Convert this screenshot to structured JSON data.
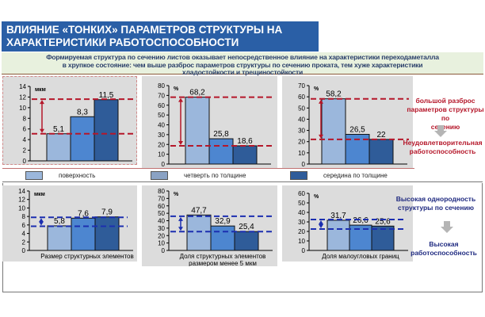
{
  "header": {
    "title_line1": "ВЛИЯНИЕ «ТОНКИХ» ПАРАМЕТРОВ СТРУКТУРЫ НА",
    "title_line2": "ХАРАКТЕРИСТИКИ РАБОТОСПОСОБНОСТИ",
    "subtitle_line1": "Формируемая структура по сечению листов оказывает непосредственное влияние на характеристики переходаметалла",
    "subtitle_line2": "в хрупкое состояние: чем выше разброс параметров структуры по сечению проката, тем хуже характеристики",
    "subtitle_line3": "хладостойкости и трещиностойкости"
  },
  "legend": [
    {
      "label": "поверхность",
      "color": "#9bb7dc"
    },
    {
      "label": "четверть по толщине",
      "color": "#8aa2c4"
    },
    {
      "label": "середина по толщине",
      "color": "#2f5c9a"
    }
  ],
  "colors": {
    "bar1": "#9bb7dc",
    "bar2": "#4d86d0",
    "bar3": "#2f5c99",
    "red": "#b5172a",
    "blue": "#1c2fb0",
    "dark_blue_text": "#1f2a80"
  },
  "notes": {
    "top_line1": "большой разброс",
    "top_line2": "параметров структуры по",
    "top_line3": "сечению",
    "top_result_line1": "Неудовлетворительная",
    "top_result_line2": "работоспособность",
    "bottom_line1": "Высокая однородность",
    "bottom_line2": "структуры по сечению",
    "bottom_result_line1": "Высокая",
    "bottom_result_line2": "работоспособность"
  },
  "chart_data": [
    {
      "type": "bar",
      "unit": "мкм",
      "ylim": [
        0,
        14
      ],
      "ticks": [
        "0",
        "2",
        "4",
        "6",
        "8",
        "10",
        "12",
        "14"
      ],
      "values": [
        5.1,
        8.3,
        11.5
      ],
      "labels": [
        "5,1",
        "8,3",
        "11,5"
      ],
      "categories": [
        "поверхность",
        "четверть по толщине",
        "середина по толщине"
      ],
      "xlabel": "",
      "range_lines": [
        5.1,
        11.6
      ],
      "line_color": "red"
    },
    {
      "type": "bar",
      "unit": "%",
      "ylim": [
        0,
        80
      ],
      "ticks": [
        "0",
        "10",
        "20",
        "30",
        "40",
        "50",
        "60",
        "70",
        "80"
      ],
      "values": [
        68.2,
        25.8,
        18.6
      ],
      "labels": [
        "68,2",
        "25,8",
        "18,6"
      ],
      "categories": [
        "поверхность",
        "четверть по толщине",
        "середина по толщине"
      ],
      "xlabel": "",
      "range_lines": [
        18.6,
        68.2
      ],
      "line_color": "red"
    },
    {
      "type": "bar",
      "unit": "%",
      "ylim": [
        0,
        70
      ],
      "ticks": [
        "0",
        "10",
        "20",
        "30",
        "40",
        "50",
        "60",
        "70"
      ],
      "values": [
        58.2,
        26.5,
        22
      ],
      "labels": [
        "58,2",
        "26,5",
        "22"
      ],
      "categories": [
        "поверхность",
        "четверть по толщине",
        "середина по толщине"
      ],
      "xlabel": "",
      "range_lines": [
        22,
        58.2
      ],
      "line_color": "red"
    },
    {
      "type": "bar",
      "unit": "мкм",
      "ylim": [
        0,
        14
      ],
      "ticks": [
        "0",
        "2",
        "4",
        "6",
        "8",
        "10",
        "12",
        "14"
      ],
      "values": [
        5.8,
        7.6,
        7.9
      ],
      "labels": [
        "5,8",
        "7,6",
        "7,9"
      ],
      "categories": [
        "поверхность",
        "четверть по толщине",
        "середина по толщине"
      ],
      "xlabel": "Размер структурных элементов",
      "xlabel2": "",
      "range_lines": [
        5.7,
        7.8
      ],
      "line_color": "blue"
    },
    {
      "type": "bar",
      "unit": "%",
      "ylim": [
        0,
        80
      ],
      "ticks": [
        "0",
        "10",
        "20",
        "30",
        "40",
        "50",
        "60",
        "70",
        "80"
      ],
      "values": [
        47.7,
        32.9,
        25.4
      ],
      "labels": [
        "47,7",
        "32,9",
        "25,4"
      ],
      "categories": [
        "поверхность",
        "четверть по толщине",
        "середина по толщине"
      ],
      "xlabel": "Доля структурных элементов",
      "xlabel2": "размером менее 5 мкм",
      "range_lines": [
        25.4,
        46
      ],
      "line_color": "blue"
    },
    {
      "type": "bar",
      "unit": "%",
      "ylim": [
        0,
        60
      ],
      "ticks": [
        "0",
        "10",
        "20",
        "30",
        "40",
        "50",
        "60"
      ],
      "values": [
        31.7,
        26.6,
        25.6
      ],
      "labels": [
        "31,7",
        "26,6",
        "25,6"
      ],
      "categories": [
        "поверхность",
        "четверть по толщине",
        "середина по толщине"
      ],
      "xlabel": "Доля малоугловых границ",
      "xlabel2": "",
      "range_lines": [
        22.5,
        32.5
      ],
      "line_color": "blue"
    }
  ]
}
